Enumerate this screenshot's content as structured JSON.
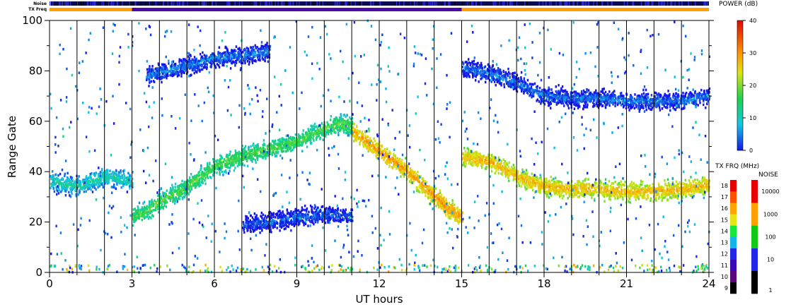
{
  "chart_data": {
    "type": "heatmap",
    "title": "",
    "xlabel": "UT hours",
    "ylabel": "Range Gate",
    "xlim": [
      0,
      24
    ],
    "ylim": [
      0,
      100
    ],
    "x_ticks": [
      0,
      3,
      6,
      9,
      12,
      15,
      18,
      21,
      24
    ],
    "y_ticks": [
      0,
      20,
      40,
      60,
      80,
      100
    ],
    "grid": "vertical lines at every UT hour",
    "top_strips": {
      "noise_label": "Noise",
      "txfreq_label": "TX Freq",
      "txfreq_segments": [
        {
          "from": 0,
          "to": 3,
          "color": "#ffa000"
        },
        {
          "from": 3,
          "to": 15,
          "color": "#4b0aa8"
        },
        {
          "from": 15,
          "to": 24,
          "color": "#ffa000"
        }
      ]
    },
    "power_colorbar": {
      "title": "POWER (dB)",
      "range": [
        0,
        40
      ],
      "tick_labels": [
        "0",
        "10",
        "20",
        "30",
        "40"
      ]
    },
    "txfreq_colorbar": {
      "title": "TX FRQ (MHz)",
      "tick_labels": [
        "9",
        "10",
        "11",
        "12",
        "13",
        "14",
        "15",
        "16",
        "17",
        "18"
      ],
      "colors": [
        "#000000",
        "#5a0a78",
        "#3a0ab4",
        "#1e28e6",
        "#14b4e6",
        "#14e63c",
        "#e6e614",
        "#ffa500",
        "#ff5000",
        "#e60000"
      ]
    },
    "noise_colorbar": {
      "title": "NOISE",
      "tick_labels": [
        "1",
        "10",
        "100",
        "1000",
        "10000"
      ],
      "colors": [
        "#000000",
        "#1e28e6",
        "#14c814",
        "#ffa000",
        "#e60000"
      ]
    },
    "bands": [
      {
        "name": "",
        "x": [
          0,
          1,
          1.5,
          2,
          2.5,
          3
        ],
        "y": [
          36,
          34,
          36,
          38,
          37,
          36
        ],
        "power_db": 12
      },
      {
        "name": "",
        "x": [
          3,
          3.5,
          4,
          5,
          6,
          7,
          8,
          9,
          10,
          10.5,
          11
        ],
        "y": [
          22,
          24,
          28,
          34,
          42,
          46,
          49,
          52,
          57,
          59,
          58
        ],
        "power_db": 18
      },
      {
        "name": "",
        "x": [
          11,
          11.5,
          12,
          12.5,
          13,
          13.5,
          14,
          14.5,
          15
        ],
        "y": [
          56,
          52,
          48,
          44,
          40,
          35,
          30,
          25,
          22
        ],
        "power_db": 30
      },
      {
        "name": "",
        "x": [
          15,
          16,
          16.5,
          17,
          18,
          19,
          20,
          21,
          22,
          23,
          24
        ],
        "y": [
          46,
          44,
          41,
          38,
          34,
          33,
          33,
          32,
          32,
          33,
          35
        ],
        "power_db": 28
      },
      {
        "name": "",
        "x": [
          7,
          8,
          9,
          10,
          11
        ],
        "y": [
          19,
          20,
          22,
          23,
          22
        ],
        "power_db": 4
      },
      {
        "name": "",
        "x": [
          15,
          16,
          17,
          18,
          19,
          20,
          21,
          22,
          23,
          24
        ],
        "y": [
          81,
          79,
          75,
          70,
          69,
          69,
          68,
          68,
          68,
          70
        ],
        "power_db": 5
      },
      {
        "name": "",
        "x": [
          3.5,
          5,
          6,
          7,
          8
        ],
        "y": [
          78,
          82,
          85,
          86,
          88
        ],
        "power_db": 5
      }
    ]
  }
}
